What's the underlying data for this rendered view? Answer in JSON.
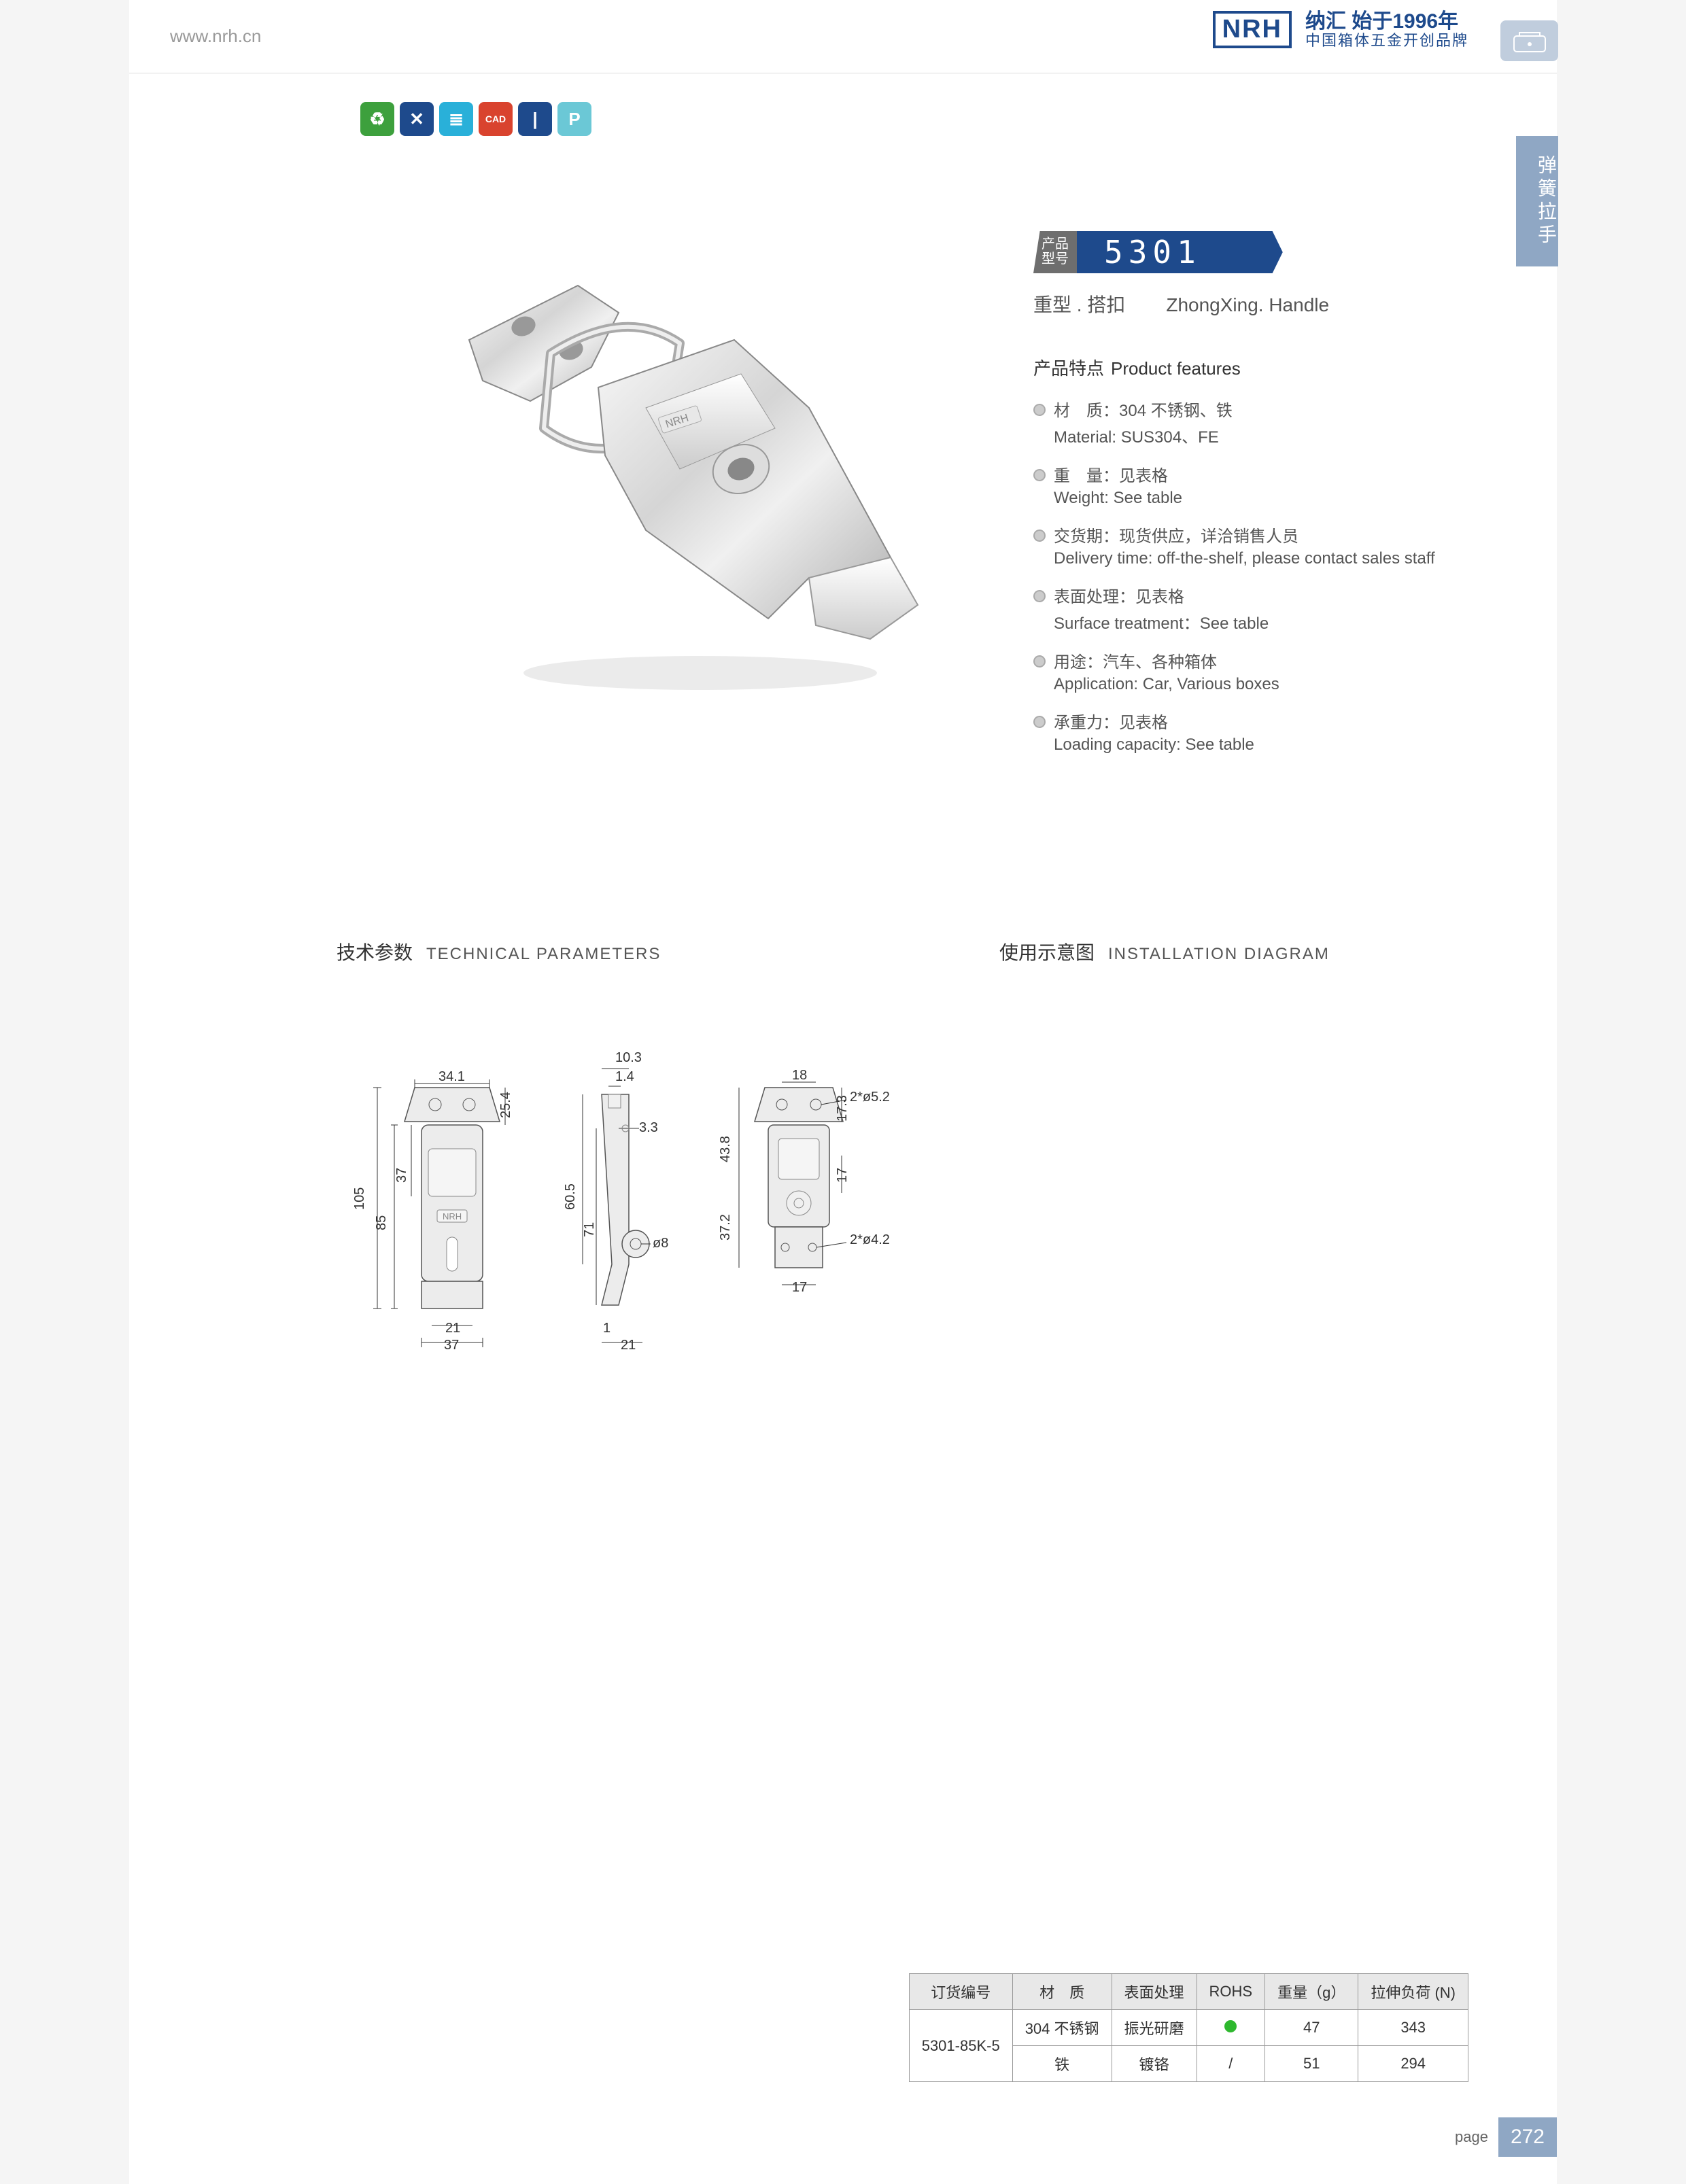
{
  "header": {
    "url": "www.nrh.cn",
    "logo": "NRH",
    "tagline1": "纳汇 始于1996年",
    "tagline2": "中国箱体五金开创品牌",
    "reg": "®"
  },
  "side_tab": "弹簧拉手",
  "icons": [
    {
      "bg": "#3da03d",
      "glyph": "♻"
    },
    {
      "bg": "#1e4a8c",
      "glyph": "✕"
    },
    {
      "bg": "#29b0d9",
      "glyph": "≣"
    },
    {
      "bg": "#d9432e",
      "glyph": "CAD"
    },
    {
      "bg": "#1e4a8c",
      "glyph": "|"
    },
    {
      "bg": "#6bc8d6",
      "glyph": "P"
    }
  ],
  "model": {
    "label_top": "产品",
    "label_bot": "型号",
    "number": "5301"
  },
  "subtitle": {
    "cn": "重型 . 搭扣",
    "en": "ZhongXing. Handle"
  },
  "features_title": {
    "cn": "产品特点",
    "en": "Product features"
  },
  "features": [
    {
      "cn": "材　质：304 不锈钢、铁",
      "en": "Material: SUS304、FE"
    },
    {
      "cn": "重　量：见表格",
      "en": "Weight: See table"
    },
    {
      "cn": "交货期：现货供应，详洽销售人员",
      "en": "Delivery time: off-the-shelf, please contact sales staff"
    },
    {
      "cn": "表面处理：见表格",
      "en": "Surface treatment：See table"
    },
    {
      "cn": "用途：汽车、各种箱体",
      "en": "Application: Car, Various boxes"
    },
    {
      "cn": "承重力：见表格",
      "en": "Loading capacity: See table"
    }
  ],
  "tech_title": {
    "cn": "技术参数",
    "en": "TECHNICAL PARAMETERS"
  },
  "install_title": {
    "cn": "使用示意图",
    "en": "INSTALLATION DIAGRAM"
  },
  "dimensions": {
    "v1_34_1": "34.1",
    "v1_105": "105",
    "v1_85": "85",
    "v1_37": "37",
    "v1_25_4": "25.4",
    "v1_21": "21",
    "v1_37b": "37",
    "v2_10_3": "10.3",
    "v2_1_4": "1.4",
    "v2_3_3": "3.3",
    "v2_60_5": "60.5",
    "v2_71": "71",
    "v2_o8": "ø8",
    "v2_1": "1",
    "v2_21": "21",
    "v3_18": "18",
    "v3_43_8": "43.8",
    "v3_37_2": "37.2",
    "v3_17_3": "17.3",
    "v3_17": "17",
    "v3_17b": "17",
    "v3_2o52": "2*ø5.2",
    "v3_2o42": "2*ø4.2"
  },
  "table": {
    "headers": [
      "订货编号",
      "材　质",
      "表面处理",
      "ROHS",
      "重量（g）",
      "拉伸负荷 (N)"
    ],
    "code": "5301-85K-5",
    "rows": [
      {
        "material": "304 不锈钢",
        "finish": "振光研磨",
        "rohs": "dot",
        "weight": "47",
        "load": "343"
      },
      {
        "material": "铁",
        "finish": "镀铬",
        "rohs": "/",
        "weight": "51",
        "load": "294"
      }
    ]
  },
  "page": {
    "label": "page",
    "num": "272"
  }
}
